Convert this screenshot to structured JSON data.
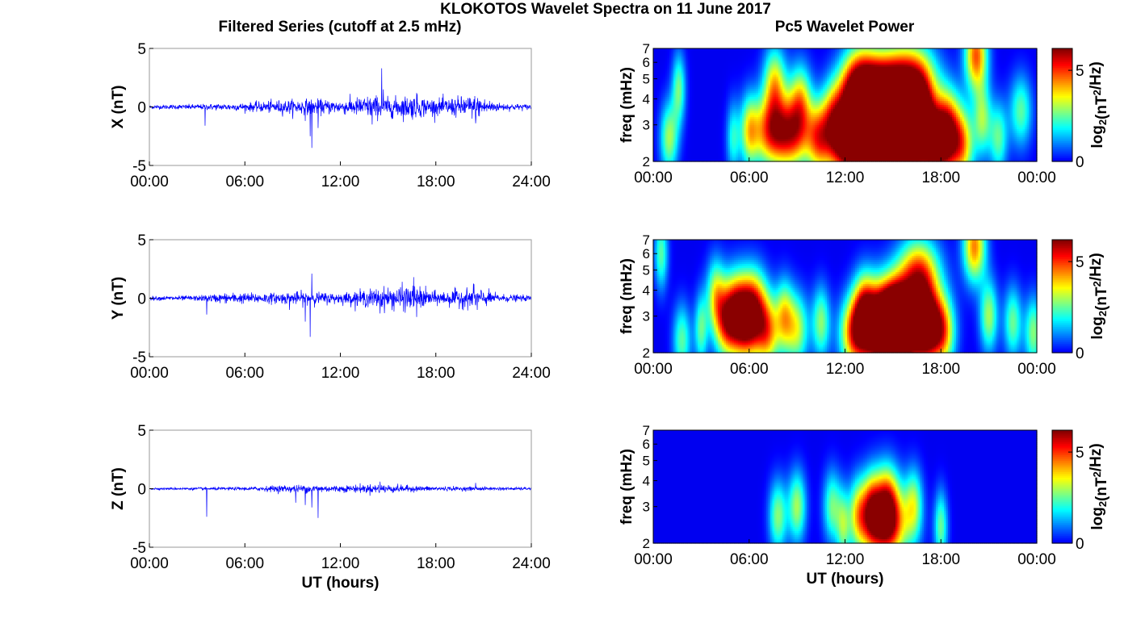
{
  "figure": {
    "title": "KLOKOTOS Wavelet Spectra on 11 June 2017",
    "left_column_title": "Filtered Series (cutoff at 2.5 mHz)",
    "right_column_title": "Pc5 Wavelet Power"
  },
  "colors": {
    "trace": "#0000ff",
    "colormap": "jet",
    "spectrum_background": "#00008f"
  },
  "chart_data": [
    {
      "type": "line",
      "component": "X",
      "ylabel": "X (nT)",
      "xlabel": "",
      "ylim": [
        -5,
        5
      ],
      "yticks": [
        "5",
        "0",
        "-5"
      ],
      "xticks": [
        "00:00",
        "06:00",
        "12:00",
        "18:00",
        "24:00"
      ],
      "xlim_hours": [
        0,
        24
      ],
      "noise_amplitude_nT_by_hour": [
        [
          0,
          0.15
        ],
        [
          3,
          0.2
        ],
        [
          6,
          0.3
        ],
        [
          8,
          0.5
        ],
        [
          10,
          0.6
        ],
        [
          12,
          0.5
        ],
        [
          14,
          0.9
        ],
        [
          15,
          0.7
        ],
        [
          16.5,
          0.9
        ],
        [
          18,
          0.6
        ],
        [
          20.5,
          0.9
        ],
        [
          22,
          0.3
        ],
        [
          24,
          0.2
        ]
      ],
      "spikes": [
        [
          3.5,
          -1.6
        ],
        [
          9.8,
          -1.2
        ],
        [
          10.1,
          -2.5
        ],
        [
          10.2,
          -3.5
        ],
        [
          10.6,
          -1.8
        ],
        [
          14.0,
          -1.5
        ],
        [
          14.6,
          3.3
        ],
        [
          14.7,
          1.5
        ],
        [
          15.3,
          -1.0
        ],
        [
          16.8,
          1.2
        ],
        [
          20.5,
          -1.4
        ]
      ]
    },
    {
      "type": "line",
      "component": "Y",
      "ylabel": "Y (nT)",
      "xlabel": "",
      "ylim": [
        -5,
        5
      ],
      "yticks": [
        "5",
        "0",
        "-5"
      ],
      "xticks": [
        "00:00",
        "06:00",
        "12:00",
        "18:00",
        "24:00"
      ],
      "xlim_hours": [
        0,
        24
      ],
      "noise_amplitude_nT_by_hour": [
        [
          0,
          0.15
        ],
        [
          3,
          0.2
        ],
        [
          5,
          0.4
        ],
        [
          8,
          0.4
        ],
        [
          9.5,
          0.5
        ],
        [
          12,
          0.4
        ],
        [
          14,
          0.7
        ],
        [
          16.5,
          1.0
        ],
        [
          18,
          0.5
        ],
        [
          20.5,
          0.8
        ],
        [
          22,
          0.3
        ],
        [
          24,
          0.2
        ]
      ],
      "spikes": [
        [
          3.6,
          -1.4
        ],
        [
          8.8,
          -1.0
        ],
        [
          9.8,
          -2.0
        ],
        [
          10.1,
          -3.3
        ],
        [
          10.2,
          2.1
        ],
        [
          14.5,
          -1.3
        ],
        [
          16.6,
          1.8
        ],
        [
          16.8,
          -1.6
        ],
        [
          20.4,
          1.2
        ],
        [
          20.6,
          -1.0
        ]
      ]
    },
    {
      "type": "line",
      "component": "Z",
      "ylabel": "Z (nT)",
      "xlabel": "UT (hours)",
      "ylim": [
        -5,
        5
      ],
      "yticks": [
        "5",
        "0",
        "-5"
      ],
      "xticks": [
        "00:00",
        "06:00",
        "12:00",
        "18:00",
        "24:00"
      ],
      "xlim_hours": [
        0,
        24
      ],
      "noise_amplitude_nT_by_hour": [
        [
          0,
          0.08
        ],
        [
          6,
          0.12
        ],
        [
          8,
          0.25
        ],
        [
          10,
          0.3
        ],
        [
          12,
          0.25
        ],
        [
          14.5,
          0.35
        ],
        [
          17,
          0.2
        ],
        [
          20,
          0.15
        ],
        [
          24,
          0.1
        ]
      ],
      "spikes": [
        [
          3.6,
          -2.4
        ],
        [
          9.2,
          -1.2
        ],
        [
          9.8,
          -1.4
        ],
        [
          10.2,
          -1.6
        ],
        [
          10.6,
          -2.5
        ],
        [
          14.5,
          0.6
        ],
        [
          20.5,
          0.5
        ]
      ]
    },
    {
      "type": "heatmap",
      "component": "X",
      "ylabel": "freq (mHz)",
      "xlabel": "",
      "y_scale": "log",
      "ylim": [
        2,
        7
      ],
      "yticks": [
        "2",
        "3",
        "4",
        "5",
        "6",
        "7"
      ],
      "xticks": [
        "00:00",
        "06:00",
        "12:00",
        "18:00",
        "00:00"
      ],
      "xlim_hours": [
        0,
        24
      ],
      "colorbar_label": "log2(nT^2/Hz)",
      "colorbar_ticks": [
        "0",
        "5"
      ],
      "clim": [
        0,
        6.2
      ],
      "blobs": [
        [
          1.0,
          2.6,
          3,
          0.4
        ],
        [
          1.6,
          4.5,
          2.6,
          0.3
        ],
        [
          5.0,
          2.6,
          2,
          0.3
        ],
        [
          6.0,
          2.8,
          3.0,
          0.4
        ],
        [
          7.3,
          2.8,
          4.5,
          0.8
        ],
        [
          7.6,
          4.8,
          3.5,
          0.5
        ],
        [
          8.7,
          2.7,
          4.5,
          0.8
        ],
        [
          9.2,
          4.0,
          3.2,
          0.5
        ],
        [
          10.3,
          2.6,
          3.5,
          0.5
        ],
        [
          11.2,
          3.3,
          3.0,
          0.5
        ],
        [
          12.1,
          2.4,
          5.0,
          1.0
        ],
        [
          12.4,
          3.8,
          4.2,
          0.7
        ],
        [
          13.0,
          5.0,
          4.2,
          0.8
        ],
        [
          13.6,
          2.5,
          5.5,
          1.0
        ],
        [
          13.9,
          3.5,
          4.5,
          0.7
        ],
        [
          14.4,
          2.4,
          5.5,
          1.2
        ],
        [
          14.7,
          4.7,
          4.8,
          1.0
        ],
        [
          15.2,
          3.0,
          4.5,
          0.8
        ],
        [
          16.1,
          2.7,
          5.0,
          1.0
        ],
        [
          16.3,
          5.0,
          4.5,
          1.0
        ],
        [
          16.8,
          3.4,
          4.0,
          0.6
        ],
        [
          17.9,
          2.3,
          5.2,
          0.9
        ],
        [
          18.4,
          3.1,
          3.8,
          0.6
        ],
        [
          19.4,
          2.4,
          3.0,
          0.5
        ],
        [
          20.2,
          6.5,
          4.8,
          0.5
        ],
        [
          20.6,
          3.2,
          2.8,
          0.4
        ],
        [
          21.6,
          2.6,
          2.5,
          0.4
        ],
        [
          23.0,
          3.5,
          2.5,
          0.5
        ]
      ]
    },
    {
      "type": "heatmap",
      "component": "Y",
      "ylabel": "freq (mHz)",
      "xlabel": "",
      "y_scale": "log",
      "ylim": [
        2,
        7
      ],
      "yticks": [
        "2",
        "3",
        "4",
        "5",
        "6",
        "7"
      ],
      "xticks": [
        "00:00",
        "06:00",
        "12:00",
        "18:00",
        "00:00"
      ],
      "xlim_hours": [
        0,
        24
      ],
      "colorbar_label": "log2(nT^2/Hz)",
      "colorbar_ticks": [
        "0",
        "5"
      ],
      "clim": [
        0,
        6.2
      ],
      "blobs": [
        [
          0.5,
          6.0,
          2.5,
          0.3
        ],
        [
          1.8,
          2.3,
          2.5,
          0.4
        ],
        [
          3.0,
          2.6,
          2.5,
          0.3
        ],
        [
          3.9,
          3.8,
          3.0,
          0.4
        ],
        [
          4.5,
          2.8,
          3.2,
          0.5
        ],
        [
          5.2,
          3.4,
          3.8,
          0.6
        ],
        [
          5.8,
          2.6,
          4.6,
          0.8
        ],
        [
          6.3,
          3.5,
          3.8,
          0.6
        ],
        [
          7.2,
          2.5,
          3.5,
          0.5
        ],
        [
          8.2,
          3.0,
          3.2,
          0.4
        ],
        [
          9.0,
          2.6,
          3.2,
          0.5
        ],
        [
          10.5,
          2.8,
          2.8,
          0.4
        ],
        [
          12.5,
          2.5,
          3.5,
          0.6
        ],
        [
          13.2,
          3.3,
          3.6,
          0.5
        ],
        [
          14.2,
          2.4,
          5.6,
          1.1
        ],
        [
          14.6,
          3.2,
          5.0,
          0.9
        ],
        [
          15.3,
          2.8,
          3.8,
          0.6
        ],
        [
          16.4,
          2.6,
          5.6,
          1.1
        ],
        [
          16.6,
          4.7,
          5.2,
          0.9
        ],
        [
          17.2,
          2.7,
          4.0,
          0.6
        ],
        [
          18.2,
          2.5,
          3.0,
          0.5
        ],
        [
          20.1,
          6.5,
          4.5,
          0.5
        ],
        [
          21.0,
          3.0,
          3.0,
          0.4
        ],
        [
          22.5,
          2.8,
          2.6,
          0.4
        ],
        [
          23.8,
          2.5,
          2.8,
          0.4
        ]
      ]
    },
    {
      "type": "heatmap",
      "component": "Z",
      "ylabel": "freq (mHz)",
      "xlabel": "UT (hours)",
      "y_scale": "log",
      "ylim": [
        2,
        7
      ],
      "yticks": [
        "2",
        "3",
        "4",
        "5",
        "6",
        "7"
      ],
      "xticks": [
        "00:00",
        "06:00",
        "12:00",
        "18:00",
        "00:00"
      ],
      "xlim_hours": [
        0,
        24
      ],
      "colorbar_label": "log2(nT^2/Hz)",
      "colorbar_ticks": [
        "0",
        "5"
      ],
      "clim": [
        0,
        6.2
      ],
      "blobs": [
        [
          7.8,
          2.7,
          2.8,
          0.4
        ],
        [
          9.0,
          3.0,
          3.0,
          0.4
        ],
        [
          11.2,
          3.0,
          2.6,
          0.4
        ],
        [
          11.9,
          2.4,
          2.4,
          0.3
        ],
        [
          12.8,
          2.8,
          3.0,
          0.4
        ],
        [
          13.6,
          3.0,
          3.0,
          0.4
        ],
        [
          14.5,
          2.4,
          5.5,
          1.0
        ],
        [
          14.6,
          3.3,
          4.0,
          0.6
        ],
        [
          16.3,
          3.1,
          2.8,
          0.4
        ],
        [
          18.0,
          2.4,
          2.6,
          0.3
        ]
      ]
    }
  ]
}
